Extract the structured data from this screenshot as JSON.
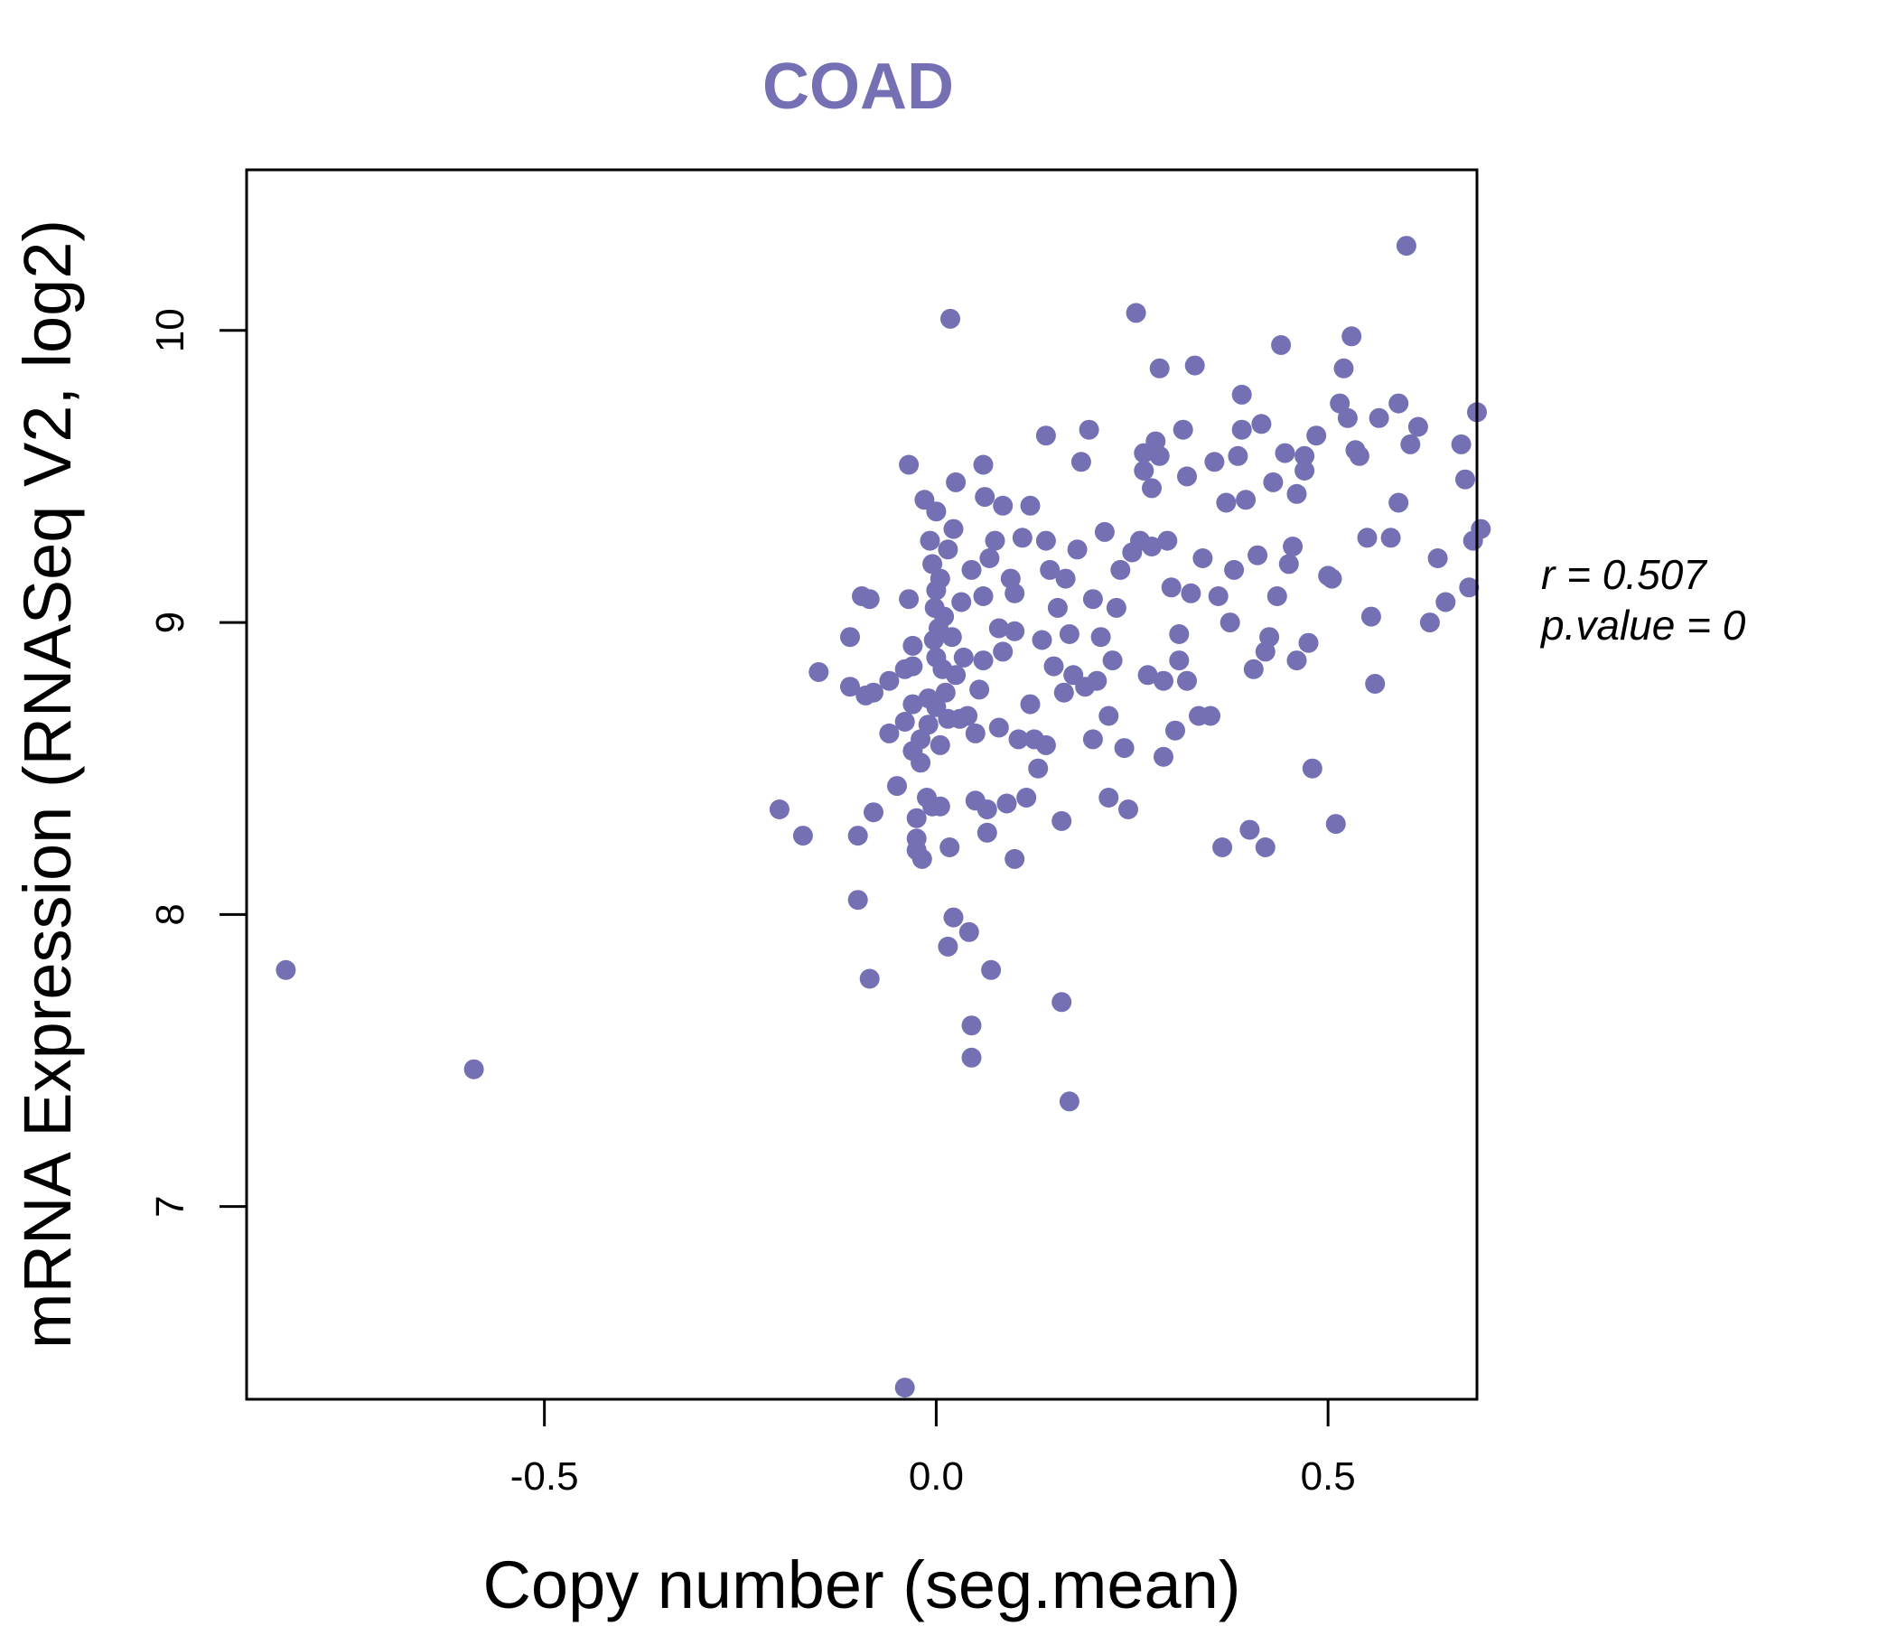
{
  "chart_data": {
    "type": "scatter",
    "title": "COAD",
    "xlabel": "Copy number (seg.mean)",
    "ylabel": "mRNA Expression (RNASeq V2, log2)",
    "xlim": [
      -0.88,
      0.69
    ],
    "ylim": [
      6.34,
      10.55
    ],
    "x_ticks": [
      "-0.5",
      "0.0",
      "0.5"
    ],
    "y_ticks": [
      "7",
      "8",
      "9",
      "10"
    ],
    "point_color": "#7570b3",
    "grid": false,
    "annotation": {
      "r_label": "r = 0.507",
      "p_label": "p.value = 0"
    },
    "points": [
      [
        -0.83,
        7.81
      ],
      [
        -0.59,
        7.47
      ],
      [
        -0.2,
        8.36
      ],
      [
        -0.17,
        8.27
      ],
      [
        -0.15,
        8.83
      ],
      [
        -0.11,
        8.78
      ],
      [
        -0.11,
        8.95
      ],
      [
        -0.1,
        8.05
      ],
      [
        -0.1,
        8.27
      ],
      [
        -0.095,
        9.09
      ],
      [
        -0.09,
        8.75
      ],
      [
        -0.085,
        7.78
      ],
      [
        -0.08,
        8.35
      ],
      [
        -0.08,
        8.76
      ],
      [
        -0.085,
        9.08
      ],
      [
        -0.06,
        8.62
      ],
      [
        -0.06,
        8.8
      ],
      [
        -0.05,
        8.44
      ],
      [
        -0.04,
        6.38
      ],
      [
        -0.04,
        8.66
      ],
      [
        -0.04,
        8.84
      ],
      [
        -0.035,
        9.08
      ],
      [
        -0.035,
        9.54
      ],
      [
        -0.03,
        8.56
      ],
      [
        -0.03,
        8.72
      ],
      [
        -0.03,
        8.92
      ],
      [
        -0.03,
        8.85
      ],
      [
        -0.025,
        8.33
      ],
      [
        -0.025,
        8.26
      ],
      [
        -0.025,
        8.22
      ],
      [
        -0.02,
        8.52
      ],
      [
        -0.02,
        8.6
      ],
      [
        -0.018,
        8.19
      ],
      [
        -0.015,
        9.42
      ],
      [
        -0.012,
        8.4
      ],
      [
        -0.01,
        8.65
      ],
      [
        -0.01,
        8.74
      ],
      [
        -0.008,
        9.28
      ],
      [
        -0.005,
        8.37
      ],
      [
        -0.005,
        9.2
      ],
      [
        -0.003,
        8.94
      ],
      [
        -0.002,
        9.05
      ],
      [
        0.0,
        8.71
      ],
      [
        0.0,
        8.88
      ],
      [
        0.0,
        9.11
      ],
      [
        0.0,
        9.38
      ],
      [
        0.003,
        8.98
      ],
      [
        0.005,
        8.37
      ],
      [
        0.005,
        8.58
      ],
      [
        0.005,
        9.15
      ],
      [
        0.008,
        8.84
      ],
      [
        0.01,
        9.02
      ],
      [
        0.012,
        8.76
      ],
      [
        0.015,
        7.89
      ],
      [
        0.015,
        8.67
      ],
      [
        0.015,
        9.25
      ],
      [
        0.017,
        8.23
      ],
      [
        0.018,
        10.04
      ],
      [
        0.02,
        8.95
      ],
      [
        0.022,
        7.99
      ],
      [
        0.022,
        9.32
      ],
      [
        0.025,
        9.48
      ],
      [
        0.025,
        8.82
      ],
      [
        0.03,
        8.67
      ],
      [
        0.032,
        9.07
      ],
      [
        0.035,
        8.88
      ],
      [
        0.04,
        8.68
      ],
      [
        0.042,
        7.94
      ],
      [
        0.045,
        7.62
      ],
      [
        0.045,
        7.51
      ],
      [
        0.045,
        9.18
      ],
      [
        0.05,
        8.39
      ],
      [
        0.05,
        8.62
      ],
      [
        0.055,
        8.77
      ],
      [
        0.06,
        8.87
      ],
      [
        0.06,
        9.09
      ],
      [
        0.06,
        9.54
      ],
      [
        0.062,
        9.43
      ],
      [
        0.065,
        8.36
      ],
      [
        0.065,
        8.28
      ],
      [
        0.068,
        9.22
      ],
      [
        0.07,
        7.81
      ],
      [
        0.075,
        9.28
      ],
      [
        0.08,
        8.64
      ],
      [
        0.08,
        8.98
      ],
      [
        0.085,
        9.4
      ],
      [
        0.085,
        8.9
      ],
      [
        0.09,
        8.38
      ],
      [
        0.095,
        9.15
      ],
      [
        0.1,
        8.19
      ],
      [
        0.1,
        8.97
      ],
      [
        0.1,
        9.1
      ],
      [
        0.105,
        8.6
      ],
      [
        0.11,
        9.29
      ],
      [
        0.115,
        8.4
      ],
      [
        0.12,
        8.72
      ],
      [
        0.12,
        9.4
      ],
      [
        0.125,
        8.6
      ],
      [
        0.13,
        8.5
      ],
      [
        0.135,
        8.94
      ],
      [
        0.14,
        8.58
      ],
      [
        0.14,
        9.28
      ],
      [
        0.14,
        9.64
      ],
      [
        0.145,
        9.18
      ],
      [
        0.15,
        8.85
      ],
      [
        0.155,
        9.05
      ],
      [
        0.16,
        7.7
      ],
      [
        0.16,
        8.32
      ],
      [
        0.163,
        8.76
      ],
      [
        0.165,
        9.15
      ],
      [
        0.17,
        7.36
      ],
      [
        0.17,
        8.96
      ],
      [
        0.175,
        8.82
      ],
      [
        0.18,
        9.25
      ],
      [
        0.185,
        9.55
      ],
      [
        0.19,
        8.78
      ],
      [
        0.195,
        9.66
      ],
      [
        0.2,
        9.08
      ],
      [
        0.2,
        8.6
      ],
      [
        0.205,
        8.8
      ],
      [
        0.21,
        8.95
      ],
      [
        0.215,
        9.31
      ],
      [
        0.22,
        8.4
      ],
      [
        0.22,
        8.68
      ],
      [
        0.225,
        8.87
      ],
      [
        0.23,
        9.05
      ],
      [
        0.235,
        9.18
      ],
      [
        0.24,
        8.57
      ],
      [
        0.245,
        8.36
      ],
      [
        0.25,
        9.24
      ],
      [
        0.255,
        10.06
      ],
      [
        0.26,
        9.28
      ],
      [
        0.265,
        9.58
      ],
      [
        0.265,
        9.52
      ],
      [
        0.27,
        8.82
      ],
      [
        0.275,
        9.46
      ],
      [
        0.275,
        9.26
      ],
      [
        0.28,
        9.62
      ],
      [
        0.285,
        9.57
      ],
      [
        0.285,
        9.87
      ],
      [
        0.29,
        8.54
      ],
      [
        0.29,
        8.8
      ],
      [
        0.295,
        9.28
      ],
      [
        0.3,
        9.12
      ],
      [
        0.305,
        8.63
      ],
      [
        0.31,
        8.87
      ],
      [
        0.31,
        8.96
      ],
      [
        0.315,
        9.66
      ],
      [
        0.32,
        9.5
      ],
      [
        0.32,
        8.8
      ],
      [
        0.325,
        9.1
      ],
      [
        0.33,
        9.88
      ],
      [
        0.335,
        8.68
      ],
      [
        0.34,
        9.22
      ],
      [
        0.35,
        8.68
      ],
      [
        0.355,
        9.55
      ],
      [
        0.36,
        9.09
      ],
      [
        0.365,
        8.23
      ],
      [
        0.37,
        9.41
      ],
      [
        0.375,
        9.0
      ],
      [
        0.38,
        9.18
      ],
      [
        0.385,
        9.57
      ],
      [
        0.39,
        9.78
      ],
      [
        0.39,
        9.66
      ],
      [
        0.395,
        9.42
      ],
      [
        0.4,
        8.29
      ],
      [
        0.405,
        8.84
      ],
      [
        0.41,
        9.23
      ],
      [
        0.415,
        9.68
      ],
      [
        0.42,
        8.9
      ],
      [
        0.42,
        8.23
      ],
      [
        0.425,
        8.95
      ],
      [
        0.43,
        9.48
      ],
      [
        0.435,
        9.09
      ],
      [
        0.44,
        9.95
      ],
      [
        0.445,
        9.58
      ],
      [
        0.45,
        9.2
      ],
      [
        0.455,
        9.26
      ],
      [
        0.46,
        8.87
      ],
      [
        0.46,
        9.44
      ],
      [
        0.47,
        9.52
      ],
      [
        0.47,
        9.57
      ],
      [
        0.475,
        8.93
      ],
      [
        0.48,
        8.5
      ],
      [
        0.485,
        9.64
      ],
      [
        0.5,
        9.16
      ],
      [
        0.505,
        9.15
      ],
      [
        0.51,
        8.31
      ],
      [
        0.515,
        9.75
      ],
      [
        0.52,
        9.87
      ],
      [
        0.525,
        9.7
      ],
      [
        0.53,
        9.98
      ],
      [
        0.535,
        9.59
      ],
      [
        0.54,
        9.57
      ],
      [
        0.55,
        9.29
      ],
      [
        0.555,
        9.02
      ],
      [
        0.56,
        8.79
      ],
      [
        0.565,
        9.7
      ],
      [
        0.58,
        9.29
      ],
      [
        0.59,
        9.75
      ],
      [
        0.59,
        9.41
      ],
      [
        0.6,
        10.29
      ],
      [
        0.605,
        9.61
      ],
      [
        0.615,
        9.67
      ],
      [
        0.63,
        9.0
      ],
      [
        0.64,
        9.22
      ],
      [
        0.65,
        9.07
      ],
      [
        0.67,
        9.61
      ],
      [
        0.675,
        9.49
      ],
      [
        0.68,
        9.12
      ],
      [
        0.685,
        9.28
      ],
      [
        0.69,
        9.72
      ],
      [
        0.695,
        9.32
      ]
    ]
  }
}
